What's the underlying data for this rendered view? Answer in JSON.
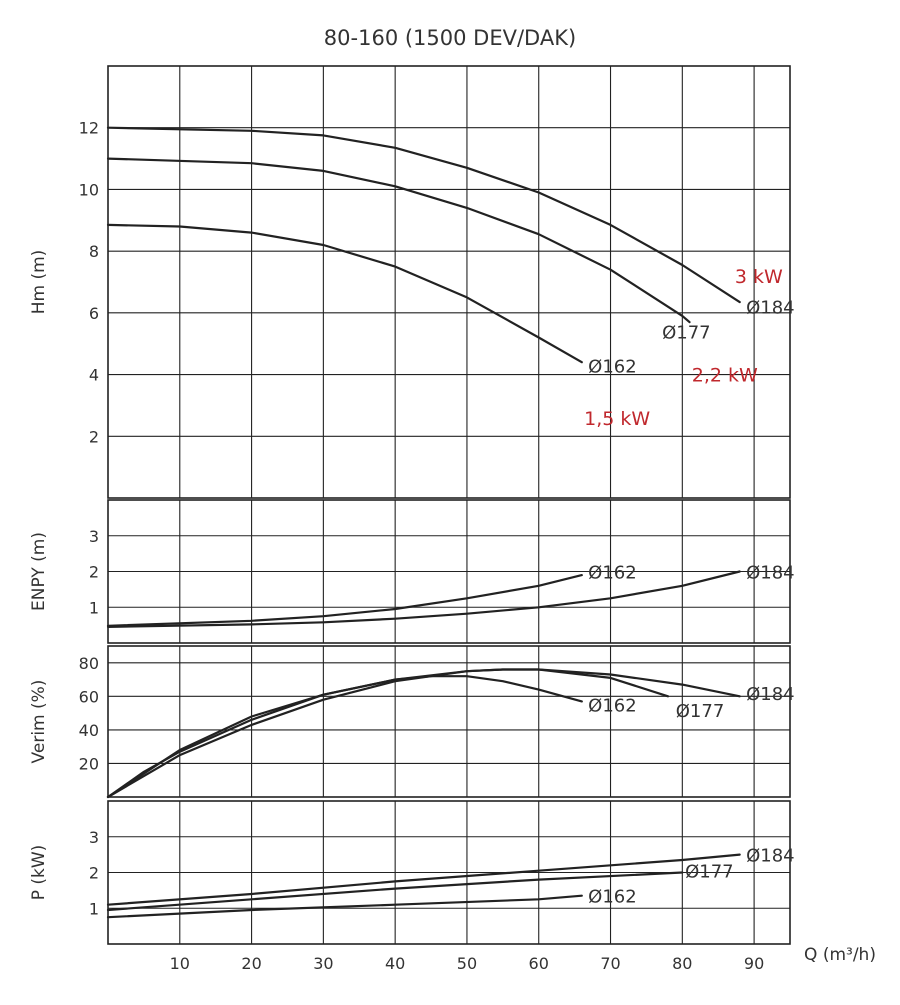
{
  "title": "80-160 (1500 DEV/DAK)",
  "xlabel": "Q (m³/h)",
  "colors": {
    "curves": "#222222",
    "grid": "#222222",
    "power_labels": "#c0282d"
  },
  "chart_data": [
    {
      "type": "line",
      "panel": "head",
      "ylabel": "Hm (m)",
      "xlim": [
        0,
        95
      ],
      "ylim": [
        0,
        14
      ],
      "x_ticks": [
        10,
        20,
        30,
        40,
        50,
        60,
        70,
        80,
        90
      ],
      "x_tick_labels": [
        "10",
        "20",
        "30",
        "40",
        "50",
        "60",
        "70",
        "80",
        "90"
      ],
      "y_ticks": [
        2,
        4,
        6,
        8,
        10,
        12
      ],
      "y_tick_labels": [
        "2",
        "4",
        "6",
        "8",
        "10",
        "12"
      ],
      "grid": true,
      "series": [
        {
          "name": "Ø184",
          "x": [
            0,
            20,
            30,
            40,
            50,
            60,
            70,
            80,
            88
          ],
          "y": [
            12.0,
            11.9,
            11.75,
            11.35,
            10.7,
            9.9,
            8.85,
            7.55,
            6.35
          ]
        },
        {
          "name": "Ø177",
          "x": [
            0,
            20,
            30,
            40,
            50,
            60,
            70,
            80,
            81
          ],
          "y": [
            11.0,
            10.85,
            10.6,
            10.1,
            9.4,
            8.55,
            7.4,
            5.9,
            5.7
          ]
        },
        {
          "name": "Ø162",
          "x": [
            0,
            10,
            20,
            30,
            40,
            50,
            60,
            66
          ],
          "y": [
            8.85,
            8.8,
            8.6,
            8.2,
            7.5,
            6.5,
            5.2,
            4.4
          ]
        }
      ],
      "annotations": [
        {
          "text": "3 kW",
          "x": 91.5,
          "y": 7.2
        },
        {
          "text": "2,2 kW",
          "x": 85.5,
          "y": 4.0
        },
        {
          "text": "1,5 kW",
          "x": 70.5,
          "y": 2.6
        }
      ]
    },
    {
      "type": "line",
      "panel": "npsh",
      "ylabel": "ENPY (m)",
      "xlim": [
        0,
        95
      ],
      "ylim": [
        0,
        4
      ],
      "x_ticks": [
        10,
        20,
        30,
        40,
        50,
        60,
        70,
        80,
        90
      ],
      "y_ticks": [
        1,
        2,
        3
      ],
      "y_tick_labels": [
        "1",
        "2",
        "3"
      ],
      "grid": true,
      "series": [
        {
          "name": "Ø162",
          "x": [
            0,
            20,
            30,
            40,
            50,
            60,
            66
          ],
          "y": [
            0.48,
            0.62,
            0.75,
            0.95,
            1.25,
            1.6,
            1.9
          ]
        },
        {
          "name": "Ø184",
          "x": [
            0,
            20,
            30,
            40,
            50,
            60,
            70,
            80,
            88
          ],
          "y": [
            0.45,
            0.52,
            0.58,
            0.68,
            0.82,
            1.0,
            1.25,
            1.6,
            2.0
          ]
        }
      ]
    },
    {
      "type": "line",
      "panel": "efficiency",
      "ylabel": "Verim (%)",
      "xlim": [
        0,
        95
      ],
      "ylim": [
        0,
        90
      ],
      "x_ticks": [
        10,
        20,
        30,
        40,
        50,
        60,
        70,
        80,
        90
      ],
      "y_ticks": [
        20,
        40,
        60,
        80
      ],
      "y_tick_labels": [
        "20",
        "40",
        "60",
        "80"
      ],
      "grid": true,
      "series": [
        {
          "name": "Ø162",
          "x": [
            0,
            5,
            10,
            20,
            30,
            40,
            45,
            50,
            55,
            60,
            66
          ],
          "y": [
            0,
            15,
            27,
            46,
            61,
            70,
            72,
            72,
            69,
            64,
            57
          ]
        },
        {
          "name": "Ø177",
          "x": [
            0,
            10,
            20,
            30,
            40,
            50,
            55,
            60,
            70,
            78
          ],
          "y": [
            0,
            25,
            43,
            58,
            69,
            75,
            76,
            76,
            71,
            60
          ]
        },
        {
          "name": "Ø184",
          "x": [
            0,
            10,
            20,
            30,
            40,
            50,
            55,
            60,
            70,
            80,
            88
          ],
          "y": [
            0,
            28,
            48,
            61,
            70,
            75,
            76,
            76,
            73,
            67,
            60
          ]
        }
      ]
    },
    {
      "type": "line",
      "panel": "power",
      "ylabel": "P (kW)",
      "xlim": [
        0,
        95
      ],
      "ylim": [
        0,
        4
      ],
      "x_ticks": [
        10,
        20,
        30,
        40,
        50,
        60,
        70,
        80,
        90
      ],
      "y_ticks": [
        1,
        2,
        3
      ],
      "y_tick_labels": [
        "1",
        "2",
        "3"
      ],
      "grid": true,
      "series": [
        {
          "name": "Ø184",
          "x": [
            0,
            20,
            40,
            60,
            80,
            88
          ],
          "y": [
            1.1,
            1.4,
            1.75,
            2.05,
            2.35,
            2.5
          ]
        },
        {
          "name": "Ø177",
          "x": [
            0,
            20,
            40,
            60,
            80
          ],
          "y": [
            0.95,
            1.25,
            1.55,
            1.8,
            2.0
          ]
        },
        {
          "name": "Ø162",
          "x": [
            0,
            20,
            40,
            60,
            66
          ],
          "y": [
            0.75,
            0.95,
            1.1,
            1.25,
            1.35
          ]
        }
      ]
    }
  ]
}
